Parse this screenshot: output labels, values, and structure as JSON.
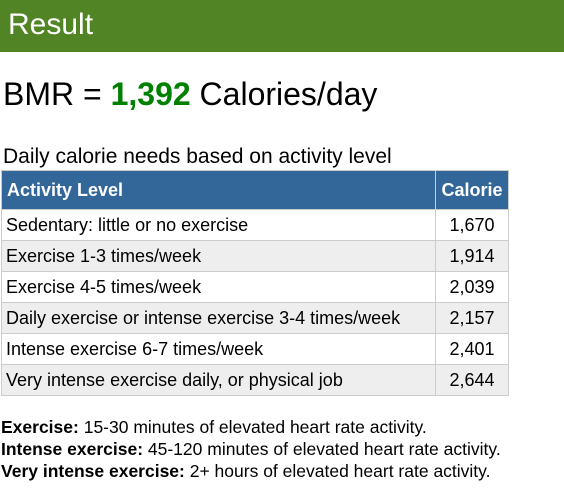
{
  "header": {
    "title": "Result"
  },
  "bmr": {
    "prefix": "BMR = ",
    "value": "1,392",
    "unit": " Calories/day"
  },
  "table": {
    "caption": "Daily calorie needs based on activity level",
    "headers": [
      "Activity Level",
      "Calorie"
    ],
    "rows": [
      {
        "level": "Sedentary: little or no exercise",
        "calorie": "1,670"
      },
      {
        "level": "Exercise 1-3 times/week",
        "calorie": "1,914"
      },
      {
        "level": "Exercise 4-5 times/week",
        "calorie": "2,039"
      },
      {
        "level": "Daily exercise or intense exercise 3-4 times/week",
        "calorie": "2,157"
      },
      {
        "level": "Intense exercise 6-7 times/week",
        "calorie": "2,401"
      },
      {
        "level": "Very intense exercise daily, or physical job",
        "calorie": "2,644"
      }
    ]
  },
  "notes": [
    {
      "term": "Exercise:",
      "text": " 15-30 minutes of elevated heart rate activity."
    },
    {
      "term": "Intense exercise:",
      "text": " 45-120 minutes of elevated heart rate activity."
    },
    {
      "term": "Very intense exercise:",
      "text": " 2+ hours of elevated heart rate activity."
    }
  ],
  "colors": {
    "header_bg": "#518424",
    "table_head_bg": "#336699",
    "bmr_value": "#008000"
  }
}
